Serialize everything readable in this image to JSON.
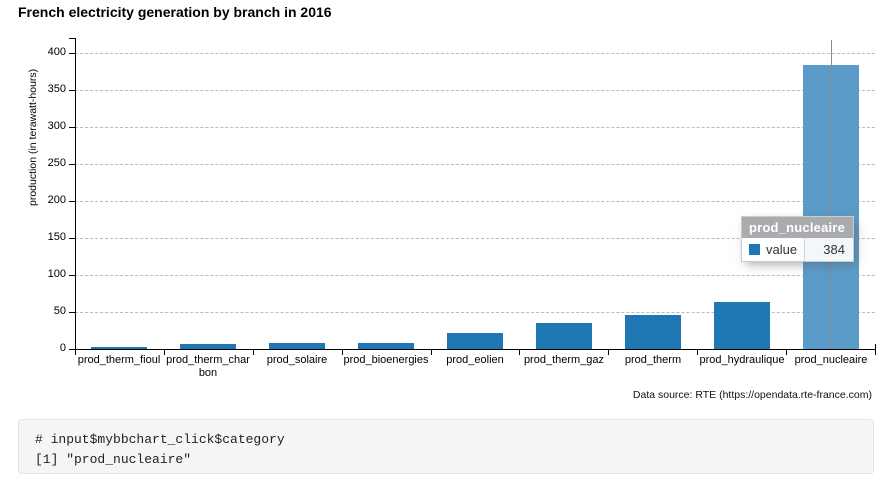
{
  "page_title": "French electricity generation by branch in 2016",
  "chart_data": {
    "type": "bar",
    "title": "French electricity generation by branch in 2016",
    "categories": [
      "prod_therm_fioul",
      "prod_therm_charbon",
      "prod_solaire",
      "prod_bioenergies",
      "prod_eolien",
      "prod_therm_gaz",
      "prod_therm",
      "prod_hydraulique",
      "prod_nucleaire"
    ],
    "values": [
      3,
      7,
      8,
      8,
      21,
      35,
      46,
      64,
      384
    ],
    "xlabel": "",
    "ylabel": "production (in terawatt-hours)",
    "ylim": [
      0,
      400
    ],
    "ytick_step": 50,
    "yticks": [
      0,
      50,
      100,
      150,
      200,
      250,
      300,
      350,
      400
    ],
    "grid": true,
    "legend_position": "none",
    "bar_color": "#1f77b4",
    "selected_index": 8,
    "selected_bar_color": "#5b9bc9",
    "caption": "Data source: RTE (https://opendata.rte-france.com)"
  },
  "tooltip": {
    "title": "prod_nucleaire",
    "series_label": "value",
    "value": "384",
    "swatch_color": "#1f77b4"
  },
  "console": {
    "lines": [
      "# input$mybbchart_click$category",
      "[1] \"prod_nucleaire\""
    ]
  }
}
